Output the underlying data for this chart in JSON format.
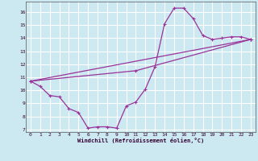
{
  "xlabel": "Windchill (Refroidissement éolien,°C)",
  "background_color": "#cce8f0",
  "grid_color": "#ffffff",
  "line_color": "#993399",
  "xlim": [
    -0.5,
    23.5
  ],
  "ylim": [
    6.8,
    16.8
  ],
  "yticks": [
    7,
    8,
    9,
    10,
    11,
    12,
    13,
    14,
    15,
    16
  ],
  "xticks": [
    0,
    1,
    2,
    3,
    4,
    5,
    6,
    7,
    8,
    9,
    10,
    11,
    12,
    13,
    14,
    15,
    16,
    17,
    18,
    19,
    20,
    21,
    22,
    23
  ],
  "series1_x": [
    0,
    1,
    2,
    3,
    4,
    5,
    6,
    7,
    8,
    9,
    10,
    11,
    12,
    13,
    14,
    15,
    16,
    17,
    18,
    19,
    20,
    21,
    22,
    23
  ],
  "series1_y": [
    10.7,
    10.3,
    9.6,
    9.5,
    8.6,
    8.3,
    7.1,
    7.2,
    7.2,
    7.1,
    8.8,
    9.1,
    10.1,
    11.8,
    15.1,
    16.3,
    16.3,
    15.5,
    14.2,
    13.9,
    14.0,
    14.1,
    14.1,
    13.9
  ],
  "series2_x": [
    0,
    23
  ],
  "series2_y": [
    10.7,
    13.9
  ],
  "series3_x": [
    0,
    11,
    23
  ],
  "series3_y": [
    10.7,
    11.5,
    13.9
  ]
}
